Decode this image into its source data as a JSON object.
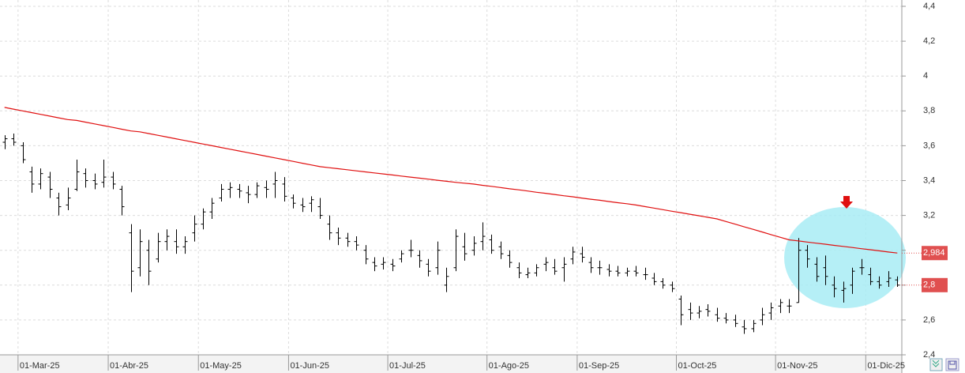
{
  "chart_data": {
    "type": "ohlc",
    "ohlc_color": "#000000",
    "ma_color": "#e01010",
    "grid": true,
    "ylim": [
      2.4,
      4.4
    ],
    "yticks": [
      {
        "value": 2.4,
        "label": "2,4"
      },
      {
        "value": 2.6,
        "label": "2,6"
      },
      {
        "value": 2.8,
        "label": "2,8"
      },
      {
        "value": 3,
        "label": "3"
      },
      {
        "value": 3.2,
        "label": "3,2"
      },
      {
        "value": 3.4,
        "label": "3,4"
      },
      {
        "value": 3.6,
        "label": "3,6"
      },
      {
        "value": 3.8,
        "label": "3,8"
      },
      {
        "value": 4,
        "label": "4"
      },
      {
        "value": 4.2,
        "label": "4,2"
      },
      {
        "value": 4.4,
        "label": "4,4"
      }
    ],
    "categories": [
      null,
      null,
      "01-Mar-25",
      null,
      null,
      null,
      null,
      null,
      null,
      null,
      null,
      null,
      "01-Abr-25",
      null,
      null,
      null,
      null,
      null,
      null,
      null,
      null,
      null,
      "01-May-25",
      null,
      null,
      null,
      null,
      null,
      null,
      null,
      null,
      null,
      "01-Jun-25",
      null,
      null,
      null,
      null,
      null,
      null,
      null,
      null,
      null,
      null,
      "01-Jul-25",
      null,
      null,
      null,
      null,
      null,
      null,
      null,
      null,
      null,
      null,
      "01-Ago-25",
      null,
      null,
      null,
      null,
      null,
      null,
      null,
      null,
      null,
      "01-Sep-25",
      null,
      null,
      null,
      null,
      null,
      null,
      null,
      null,
      null,
      null,
      "01-Oct-25",
      null,
      null,
      null,
      null,
      null,
      null,
      null,
      null,
      null,
      null,
      "01-Nov-25",
      null,
      null,
      null,
      null,
      null,
      null,
      null,
      null,
      null,
      "01-Dic-25",
      null,
      null,
      null
    ],
    "ohlc": [
      [
        3.62,
        3.66,
        3.58,
        3.64
      ],
      [
        3.64,
        3.67,
        3.6,
        3.62
      ],
      [
        3.6,
        3.62,
        3.5,
        3.52
      ],
      [
        3.45,
        3.48,
        3.33,
        3.38
      ],
      [
        3.38,
        3.47,
        3.35,
        3.44
      ],
      [
        3.42,
        3.45,
        3.3,
        3.35
      ],
      [
        3.3,
        3.33,
        3.2,
        3.25
      ],
      [
        3.26,
        3.36,
        3.23,
        3.3
      ],
      [
        3.35,
        3.52,
        3.34,
        3.45
      ],
      [
        3.44,
        3.47,
        3.36,
        3.4
      ],
      [
        3.4,
        3.44,
        3.35,
        3.38
      ],
      [
        3.39,
        3.52,
        3.36,
        3.42
      ],
      [
        3.42,
        3.45,
        3.35,
        3.38
      ],
      [
        3.35,
        3.37,
        3.2,
        3.25
      ],
      [
        3.1,
        3.15,
        2.76,
        2.88
      ],
      [
        2.9,
        3.12,
        2.85,
        3.05
      ],
      [
        3.0,
        3.06,
        2.8,
        2.88
      ],
      [
        2.95,
        3.1,
        2.93,
        3.05
      ],
      [
        3.05,
        3.12,
        3.0,
        3.08
      ],
      [
        3.05,
        3.12,
        2.98,
        3.02
      ],
      [
        3.02,
        3.08,
        2.98,
        3.05
      ],
      [
        3.1,
        3.2,
        3.05,
        3.15
      ],
      [
        3.15,
        3.24,
        3.12,
        3.22
      ],
      [
        3.22,
        3.3,
        3.18,
        3.27
      ],
      [
        3.3,
        3.38,
        3.28,
        3.35
      ],
      [
        3.35,
        3.39,
        3.3,
        3.36
      ],
      [
        3.35,
        3.38,
        3.3,
        3.34
      ],
      [
        3.33,
        3.37,
        3.27,
        3.32
      ],
      [
        3.32,
        3.39,
        3.3,
        3.37
      ],
      [
        3.36,
        3.4,
        3.3,
        3.35
      ],
      [
        3.38,
        3.45,
        3.3,
        3.4
      ],
      [
        3.38,
        3.42,
        3.28,
        3.31
      ],
      [
        3.3,
        3.32,
        3.24,
        3.27
      ],
      [
        3.26,
        3.3,
        3.22,
        3.25
      ],
      [
        3.27,
        3.31,
        3.22,
        3.29
      ],
      [
        3.25,
        3.3,
        3.18,
        3.2
      ],
      [
        3.15,
        3.2,
        3.06,
        3.1
      ],
      [
        3.1,
        3.13,
        3.03,
        3.07
      ],
      [
        3.07,
        3.1,
        3.02,
        3.05
      ],
      [
        3.05,
        3.08,
        3.0,
        3.03
      ],
      [
        3.0,
        3.03,
        2.92,
        2.95
      ],
      [
        2.93,
        2.96,
        2.88,
        2.91
      ],
      [
        2.92,
        2.96,
        2.89,
        2.93
      ],
      [
        2.92,
        2.95,
        2.88,
        2.91
      ],
      [
        2.95,
        3.0,
        2.93,
        2.98
      ],
      [
        3.0,
        3.06,
        2.96,
        3.0
      ],
      [
        2.97,
        3.0,
        2.9,
        2.94
      ],
      [
        2.92,
        2.95,
        2.85,
        2.88
      ],
      [
        2.9,
        3.05,
        2.86,
        3.0
      ],
      [
        2.8,
        2.9,
        2.76,
        2.85
      ],
      [
        2.9,
        3.12,
        2.88,
        3.08
      ],
      [
        3.02,
        3.1,
        2.94,
        2.98
      ],
      [
        3.0,
        3.08,
        2.97,
        3.04
      ],
      [
        3.05,
        3.16,
        3.0,
        3.08
      ],
      [
        3.06,
        3.09,
        2.98,
        3.0
      ],
      [
        3.02,
        3.05,
        2.95,
        2.98
      ],
      [
        2.97,
        3.0,
        2.9,
        2.93
      ],
      [
        2.9,
        2.93,
        2.84,
        2.87
      ],
      [
        2.86,
        2.9,
        2.84,
        2.87
      ],
      [
        2.87,
        2.92,
        2.85,
        2.9
      ],
      [
        2.92,
        2.96,
        2.88,
        2.93
      ],
      [
        2.9,
        2.95,
        2.86,
        2.88
      ],
      [
        2.9,
        2.96,
        2.82,
        2.92
      ],
      [
        2.95,
        3.02,
        2.92,
        2.99
      ],
      [
        2.98,
        3.02,
        2.93,
        2.96
      ],
      [
        2.93,
        2.96,
        2.87,
        2.9
      ],
      [
        2.9,
        2.94,
        2.86,
        2.9
      ],
      [
        2.89,
        2.92,
        2.85,
        2.88
      ],
      [
        2.88,
        2.91,
        2.85,
        2.87
      ],
      [
        2.87,
        2.9,
        2.85,
        2.88
      ],
      [
        2.88,
        2.91,
        2.85,
        2.87
      ],
      [
        2.86,
        2.9,
        2.83,
        2.86
      ],
      [
        2.84,
        2.87,
        2.8,
        2.82
      ],
      [
        2.82,
        2.84,
        2.78,
        2.8
      ],
      [
        2.8,
        2.82,
        2.76,
        2.78
      ],
      [
        2.72,
        2.74,
        2.57,
        2.63
      ],
      [
        2.66,
        2.7,
        2.6,
        2.64
      ],
      [
        2.64,
        2.68,
        2.61,
        2.65
      ],
      [
        2.66,
        2.69,
        2.62,
        2.65
      ],
      [
        2.63,
        2.67,
        2.59,
        2.61
      ],
      [
        2.61,
        2.64,
        2.58,
        2.6
      ],
      [
        2.6,
        2.63,
        2.56,
        2.58
      ],
      [
        2.56,
        2.6,
        2.52,
        2.55
      ],
      [
        2.55,
        2.6,
        2.53,
        2.58
      ],
      [
        2.6,
        2.67,
        2.57,
        2.63
      ],
      [
        2.64,
        2.7,
        2.6,
        2.67
      ],
      [
        2.68,
        2.72,
        2.64,
        2.7
      ],
      [
        2.68,
        2.72,
        2.64,
        2.68
      ],
      [
        2.7,
        3.07,
        2.7,
        3.0
      ],
      [
        3.0,
        3.03,
        2.9,
        2.95
      ],
      [
        2.92,
        2.96,
        2.82,
        2.85
      ],
      [
        2.9,
        2.97,
        2.8,
        2.85
      ],
      [
        2.8,
        2.85,
        2.73,
        2.78
      ],
      [
        2.77,
        2.82,
        2.7,
        2.78
      ],
      [
        2.8,
        2.9,
        2.75,
        2.88
      ],
      [
        2.9,
        2.95,
        2.86,
        2.9
      ],
      [
        2.86,
        2.9,
        2.8,
        2.82
      ],
      [
        2.82,
        2.85,
        2.78,
        2.8
      ],
      [
        2.82,
        2.88,
        2.79,
        2.84
      ],
      [
        2.83,
        2.85,
        2.79,
        2.8
      ]
    ],
    "ma": [
      3.82,
      3.81,
      3.8,
      3.79,
      3.78,
      3.77,
      3.76,
      3.75,
      3.745,
      3.735,
      3.725,
      3.715,
      3.705,
      3.695,
      3.685,
      3.68,
      3.67,
      3.66,
      3.65,
      3.64,
      3.63,
      3.62,
      3.61,
      3.6,
      3.59,
      3.58,
      3.57,
      3.56,
      3.55,
      3.54,
      3.53,
      3.52,
      3.51,
      3.5,
      3.49,
      3.48,
      3.474,
      3.468,
      3.462,
      3.456,
      3.45,
      3.444,
      3.438,
      3.432,
      3.426,
      3.42,
      3.414,
      3.408,
      3.402,
      3.396,
      3.39,
      3.385,
      3.38,
      3.373,
      3.367,
      3.36,
      3.353,
      3.347,
      3.34,
      3.333,
      3.327,
      3.32,
      3.313,
      3.307,
      3.3,
      3.293,
      3.287,
      3.28,
      3.273,
      3.267,
      3.26,
      3.251,
      3.242,
      3.233,
      3.224,
      3.216,
      3.207,
      3.198,
      3.189,
      3.18,
      3.165,
      3.15,
      3.135,
      3.12,
      3.105,
      3.09,
      3.075,
      3.06,
      3.054,
      3.047,
      3.041,
      3.035,
      3.028,
      3.022,
      3.016,
      3.009,
      3.003,
      2.997,
      2.99,
      2.984
    ],
    "last_labels": [
      {
        "value": 2.984,
        "label": "2,984",
        "color": "#e05050"
      },
      {
        "value": 2.8,
        "label": "2,8",
        "color": "#e05050"
      }
    ]
  }
}
